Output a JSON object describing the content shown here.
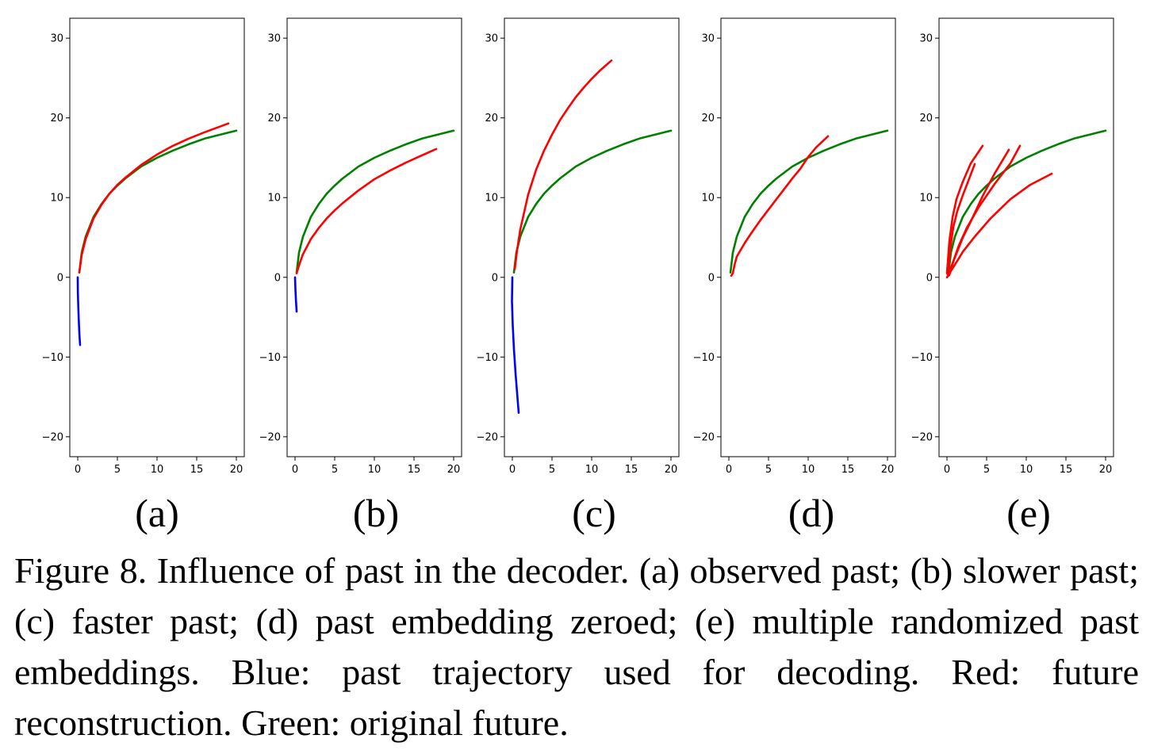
{
  "colors": {
    "past": "#0000ff",
    "reconstruction": "#ff0000",
    "original": "#008000"
  },
  "chart_data": [
    {
      "type": "line",
      "panel": "(a)",
      "xlim": [
        -1,
        21
      ],
      "ylim": [
        -22.5,
        32.5
      ],
      "xticks": [
        0,
        5,
        10,
        15,
        20
      ],
      "yticks": [
        -20,
        -10,
        0,
        10,
        20,
        30
      ],
      "grid": false,
      "series": [
        {
          "color": "blue",
          "x": [
            0.0,
            0.02,
            0.08,
            0.15,
            0.22,
            0.3
          ],
          "y": [
            0.0,
            -2.0,
            -4.0,
            -5.8,
            -7.3,
            -8.5
          ]
        },
        {
          "color": "green",
          "x": [
            0.2,
            0.5,
            1,
            2,
            3,
            4,
            5,
            6,
            8,
            10,
            12,
            14,
            16,
            18,
            20
          ],
          "y": [
            0.6,
            3.1,
            5.1,
            7.6,
            9.2,
            10.5,
            11.5,
            12.4,
            13.9,
            15.0,
            15.9,
            16.7,
            17.4,
            17.9,
            18.4
          ]
        },
        {
          "color": "red",
          "x": [
            0.2,
            0.5,
            1,
            2,
            3,
            4,
            5,
            6,
            8,
            10,
            12,
            14,
            16,
            19
          ],
          "y": [
            0.6,
            2.8,
            4.8,
            7.4,
            9.1,
            10.5,
            11.6,
            12.5,
            14.1,
            15.4,
            16.5,
            17.4,
            18.2,
            19.3
          ]
        }
      ]
    },
    {
      "type": "line",
      "panel": "(b)",
      "xlim": [
        -1,
        21
      ],
      "ylim": [
        -22.5,
        32.5
      ],
      "xticks": [
        0,
        5,
        10,
        15,
        20
      ],
      "yticks": [
        -20,
        -10,
        0,
        10,
        20,
        30
      ],
      "grid": false,
      "series": [
        {
          "color": "blue",
          "x": [
            0.0,
            0.05,
            0.12,
            0.2
          ],
          "y": [
            0.0,
            -1.5,
            -3.0,
            -4.3
          ]
        },
        {
          "color": "green",
          "x": [
            0.2,
            0.5,
            1,
            2,
            3,
            4,
            5,
            6,
            8,
            10,
            12,
            14,
            16,
            18,
            20
          ],
          "y": [
            0.6,
            3.1,
            5.1,
            7.6,
            9.2,
            10.5,
            11.5,
            12.4,
            13.9,
            15.0,
            15.9,
            16.7,
            17.4,
            17.9,
            18.4
          ]
        },
        {
          "color": "red",
          "x": [
            0.2,
            0.5,
            1,
            2,
            3,
            4,
            5,
            6,
            8,
            10,
            12,
            14,
            16,
            17.8
          ],
          "y": [
            0.5,
            1.5,
            2.9,
            4.8,
            6.2,
            7.4,
            8.4,
            9.3,
            10.9,
            12.3,
            13.4,
            14.4,
            15.3,
            16.1
          ]
        }
      ]
    },
    {
      "type": "line",
      "panel": "(c)",
      "xlim": [
        -1,
        21
      ],
      "ylim": [
        -22.5,
        32.5
      ],
      "xticks": [
        0,
        5,
        10,
        15,
        20
      ],
      "yticks": [
        -20,
        -10,
        0,
        10,
        20,
        30
      ],
      "grid": false,
      "series": [
        {
          "color": "blue",
          "x": [
            0.0,
            -0.05,
            0.05,
            0.2,
            0.4,
            0.6,
            0.8
          ],
          "y": [
            0.0,
            -3.0,
            -6.0,
            -9.0,
            -12.0,
            -14.5,
            -17.0
          ]
        },
        {
          "color": "green",
          "x": [
            0.2,
            0.5,
            1,
            2,
            3,
            4,
            5,
            6,
            8,
            10,
            12,
            14,
            16,
            18,
            20
          ],
          "y": [
            0.6,
            3.1,
            5.1,
            7.6,
            9.2,
            10.5,
            11.5,
            12.4,
            13.9,
            15.0,
            15.9,
            16.7,
            17.4,
            17.9,
            18.4
          ]
        },
        {
          "color": "red",
          "x": [
            0.3,
            0.6,
            1,
            2,
            3,
            4,
            5,
            6,
            7,
            8,
            9,
            10,
            11,
            12.5
          ],
          "y": [
            1.0,
            3.4,
            6.0,
            10.4,
            13.5,
            15.9,
            17.9,
            19.7,
            21.2,
            22.6,
            23.8,
            24.9,
            25.9,
            27.2
          ]
        }
      ]
    },
    {
      "type": "line",
      "panel": "(d)",
      "xlim": [
        -1,
        21
      ],
      "ylim": [
        -22.5,
        32.5
      ],
      "xticks": [
        0,
        5,
        10,
        15,
        20
      ],
      "yticks": [
        -20,
        -10,
        0,
        10,
        20,
        30
      ],
      "grid": false,
      "series": [
        {
          "color": "green",
          "x": [
            0.2,
            0.5,
            1,
            2,
            3,
            4,
            5,
            6,
            8,
            10,
            12,
            14,
            16,
            18,
            20
          ],
          "y": [
            0.6,
            3.1,
            5.1,
            7.6,
            9.2,
            10.5,
            11.5,
            12.4,
            13.9,
            15.0,
            15.9,
            16.7,
            17.4,
            17.9,
            18.4
          ]
        },
        {
          "color": "red",
          "x": [
            0.3,
            0.5,
            0.7,
            1,
            2,
            3,
            4,
            5,
            6,
            7,
            8,
            9,
            10,
            11,
            12.5
          ],
          "y": [
            0.2,
            0.5,
            1.5,
            2.6,
            4.3,
            5.8,
            7.2,
            8.5,
            9.8,
            11.1,
            12.4,
            13.6,
            15.1,
            16.3,
            17.7
          ]
        }
      ]
    },
    {
      "type": "line",
      "panel": "(e)",
      "xlim": [
        -1,
        21
      ],
      "ylim": [
        -22.5,
        32.5
      ],
      "xticks": [
        0,
        5,
        10,
        15,
        20
      ],
      "yticks": [
        -20,
        -10,
        0,
        10,
        20,
        30
      ],
      "grid": false,
      "series": [
        {
          "color": "green",
          "x": [
            0.2,
            0.5,
            1,
            2,
            3,
            4,
            5,
            6,
            8,
            10,
            12,
            14,
            16,
            18,
            20
          ],
          "y": [
            0.6,
            3.1,
            5.1,
            7.6,
            9.2,
            10.5,
            11.5,
            12.4,
            13.9,
            15.0,
            15.9,
            16.7,
            17.4,
            17.9,
            18.4
          ]
        },
        {
          "color": "red",
          "x": [
            0.0,
            0.3,
            0.7,
            1.2,
            2,
            3,
            4.5
          ],
          "y": [
            0.5,
            4.5,
            7.5,
            9.8,
            12.0,
            14.3,
            16.5
          ]
        },
        {
          "color": "red",
          "x": [
            0.1,
            0.4,
            0.8,
            1.3,
            2,
            3.5
          ],
          "y": [
            0.3,
            3.5,
            6.3,
            8.3,
            10.3,
            14.2
          ]
        },
        {
          "color": "red",
          "x": [
            0.2,
            0.6,
            1.2,
            2,
            3,
            4.5,
            6,
            7.8
          ],
          "y": [
            0.2,
            1.5,
            3.0,
            5.0,
            7.0,
            10.2,
            13.0,
            16.0
          ]
        },
        {
          "color": "red",
          "x": [
            0.3,
            0.8,
            1.5,
            2.5,
            4,
            6,
            8,
            9.2
          ],
          "y": [
            0.3,
            2.0,
            4.0,
            6.2,
            8.8,
            11.7,
            14.3,
            16.5
          ]
        },
        {
          "color": "red",
          "x": [
            0.0,
            0.5,
            1.2,
            2,
            3.5,
            5.5,
            8,
            10.5,
            13.2
          ],
          "y": [
            0.0,
            0.8,
            1.9,
            3.2,
            5.1,
            7.4,
            9.8,
            11.6,
            13.0
          ]
        }
      ]
    }
  ],
  "panel_labels": [
    "(a)",
    "(b)",
    "(c)",
    "(d)",
    "(e)"
  ],
  "caption": "Figure 8. Influence of past in the decoder. (a) observed past; (b) slower past; (c) faster past; (d) past embedding zeroed; (e) multiple randomized past embeddings. Blue: past trajectory used for decoding. Red: future reconstruction. Green: original future."
}
